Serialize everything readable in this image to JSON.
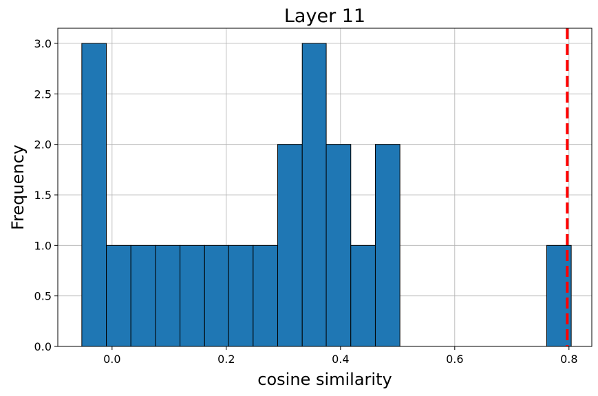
{
  "chart_data": {
    "type": "bar",
    "title": "Layer 11",
    "xlabel": "cosine similarity",
    "ylabel": "Frequency",
    "xlim": [
      -0.095,
      0.84
    ],
    "ylim": [
      0,
      3.15
    ],
    "x_ticks": [
      0.0,
      0.2,
      0.4,
      0.6,
      0.8
    ],
    "x_tick_labels": [
      "0.0",
      "0.2",
      "0.4",
      "0.6",
      "0.8"
    ],
    "y_ticks": [
      0.0,
      0.5,
      1.0,
      1.5,
      2.0,
      2.5,
      3.0
    ],
    "y_tick_labels": [
      "0.0",
      "0.5",
      "1.0",
      "1.5",
      "2.0",
      "2.5",
      "3.0"
    ],
    "grid": true,
    "bins": [
      {
        "x0": -0.053,
        "x1": -0.01,
        "count": 3
      },
      {
        "x0": -0.01,
        "x1": 0.033,
        "count": 1
      },
      {
        "x0": 0.033,
        "x1": 0.076,
        "count": 1
      },
      {
        "x0": 0.076,
        "x1": 0.119,
        "count": 1
      },
      {
        "x0": 0.119,
        "x1": 0.162,
        "count": 1
      },
      {
        "x0": 0.162,
        "x1": 0.204,
        "count": 1
      },
      {
        "x0": 0.204,
        "x1": 0.247,
        "count": 1
      },
      {
        "x0": 0.247,
        "x1": 0.29,
        "count": 1
      },
      {
        "x0": 0.29,
        "x1": 0.333,
        "count": 2
      },
      {
        "x0": 0.333,
        "x1": 0.375,
        "count": 3
      },
      {
        "x0": 0.375,
        "x1": 0.418,
        "count": 2
      },
      {
        "x0": 0.418,
        "x1": 0.461,
        "count": 1
      },
      {
        "x0": 0.461,
        "x1": 0.504,
        "count": 2
      },
      {
        "x0": 0.504,
        "x1": 0.547,
        "count": 0
      },
      {
        "x0": 0.547,
        "x1": 0.589,
        "count": 0
      },
      {
        "x0": 0.589,
        "x1": 0.632,
        "count": 0
      },
      {
        "x0": 0.632,
        "x1": 0.675,
        "count": 0
      },
      {
        "x0": 0.675,
        "x1": 0.718,
        "count": 0
      },
      {
        "x0": 0.718,
        "x1": 0.761,
        "count": 0
      },
      {
        "x0": 0.761,
        "x1": 0.804,
        "count": 1
      }
    ],
    "reference_line": {
      "x": 0.797,
      "style": "dashed"
    },
    "bar_color": "#1f77b4",
    "reference_line_color": "#ff0000"
  }
}
